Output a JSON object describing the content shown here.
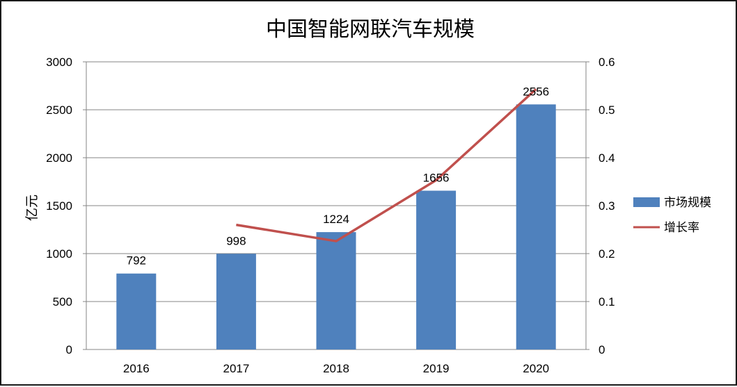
{
  "chart_data": {
    "type": "bar",
    "title": "中国智能网联汽车规模",
    "xlabel": "",
    "ylabel": "亿元",
    "ylabel_right": "",
    "categories": [
      "2016",
      "2017",
      "2018",
      "2019",
      "2020"
    ],
    "ylim": [
      0,
      3000
    ],
    "yticks": [
      "0",
      "500",
      "1000",
      "1500",
      "2000",
      "2500",
      "3000"
    ],
    "ylim_right": [
      0,
      0.6
    ],
    "yticks_right": [
      "0",
      "0.1",
      "0.2",
      "0.3",
      "0.4",
      "0.5",
      "0.6"
    ],
    "grid": true,
    "legend_position": "right",
    "series": [
      {
        "name": "市场规模",
        "type": "bar",
        "axis": "left",
        "color": "#4f81bd",
        "values": [
          792,
          998,
          1224,
          1656,
          2556
        ],
        "data_labels": [
          "792",
          "998",
          "1224",
          "1656",
          "2556"
        ]
      },
      {
        "name": "增长率",
        "type": "line",
        "axis": "right",
        "color": "#c0504d",
        "values": [
          null,
          0.26,
          0.226,
          0.353,
          0.543
        ]
      }
    ]
  }
}
